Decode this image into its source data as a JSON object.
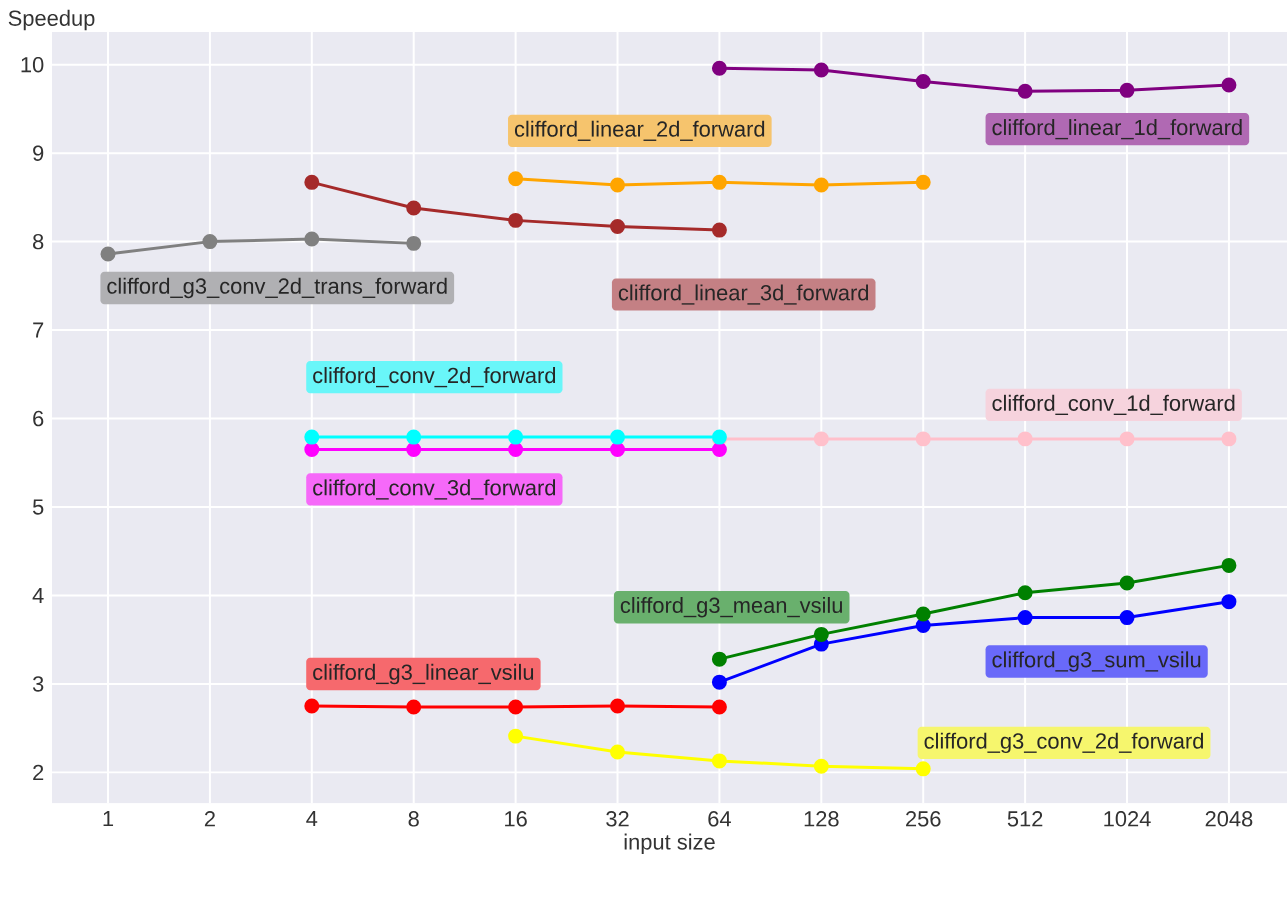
{
  "chart_data": {
    "type": "line",
    "xlabel": "input size",
    "ylabel": "Speedup",
    "categories": [
      "1",
      "2",
      "4",
      "8",
      "16",
      "32",
      "64",
      "128",
      "256",
      "512",
      "1024",
      "2048"
    ],
    "ylim": [
      1.65,
      10.37
    ],
    "yticks": [
      2,
      3,
      4,
      5,
      6,
      7,
      8,
      9,
      10
    ],
    "grid": true,
    "marker": "circle",
    "line_style": "solid",
    "series": [
      {
        "name": "clifford_g3_conv_2d_trans_forward",
        "color": "#808080",
        "values": [
          7.86,
          8.0,
          8.03,
          7.98,
          null,
          null,
          null,
          null,
          null,
          null,
          null,
          null
        ]
      },
      {
        "name": "clifford_linear_3d_forward",
        "color": "#a52a2a",
        "values": [
          null,
          null,
          8.67,
          8.38,
          8.24,
          8.17,
          8.13,
          null,
          null,
          null,
          null,
          null
        ]
      },
      {
        "name": "clifford_linear_2d_forward",
        "color": "#ffa500",
        "values": [
          null,
          null,
          null,
          null,
          8.71,
          8.64,
          8.67,
          8.64,
          8.67,
          null,
          null,
          null
        ]
      },
      {
        "name": "clifford_linear_1d_forward",
        "color": "#800080",
        "values": [
          null,
          null,
          null,
          null,
          null,
          null,
          9.96,
          9.94,
          9.81,
          9.7,
          9.71,
          9.77
        ]
      },
      {
        "name": "clifford_conv_2d_forward",
        "color": "#00ffff",
        "values": [
          null,
          null,
          5.79,
          5.79,
          5.79,
          5.79,
          5.79,
          null,
          null,
          null,
          null,
          null
        ]
      },
      {
        "name": "clifford_conv_3d_forward",
        "color": "#ff00ff",
        "values": [
          null,
          null,
          5.65,
          5.65,
          5.65,
          5.65,
          5.65,
          null,
          null,
          null,
          null,
          null
        ]
      },
      {
        "name": "clifford_conv_1d_forward",
        "color": "#ffc0cb",
        "values": [
          null,
          null,
          null,
          null,
          null,
          null,
          5.77,
          5.77,
          5.77,
          5.77,
          5.77,
          5.77
        ]
      },
      {
        "name": "clifford_g3_mean_vsilu",
        "color": "#008000",
        "values": [
          null,
          null,
          null,
          null,
          null,
          null,
          3.28,
          3.56,
          3.79,
          4.03,
          4.14,
          4.34
        ]
      },
      {
        "name": "clifford_g3_sum_vsilu",
        "color": "#0000ff",
        "values": [
          null,
          null,
          null,
          null,
          null,
          null,
          3.02,
          3.45,
          3.66,
          3.75,
          3.75,
          3.93
        ]
      },
      {
        "name": "clifford_g3_linear_vsilu",
        "color": "#ff0000",
        "values": [
          null,
          null,
          2.75,
          2.74,
          2.74,
          2.75,
          2.74,
          null,
          null,
          null,
          null,
          null
        ]
      },
      {
        "name": "clifford_g3_conv_2d_forward",
        "color": "#ffff00",
        "values": [
          null,
          null,
          null,
          null,
          2.41,
          2.23,
          2.13,
          2.07,
          2.04,
          null,
          null,
          null
        ]
      }
    ]
  }
}
